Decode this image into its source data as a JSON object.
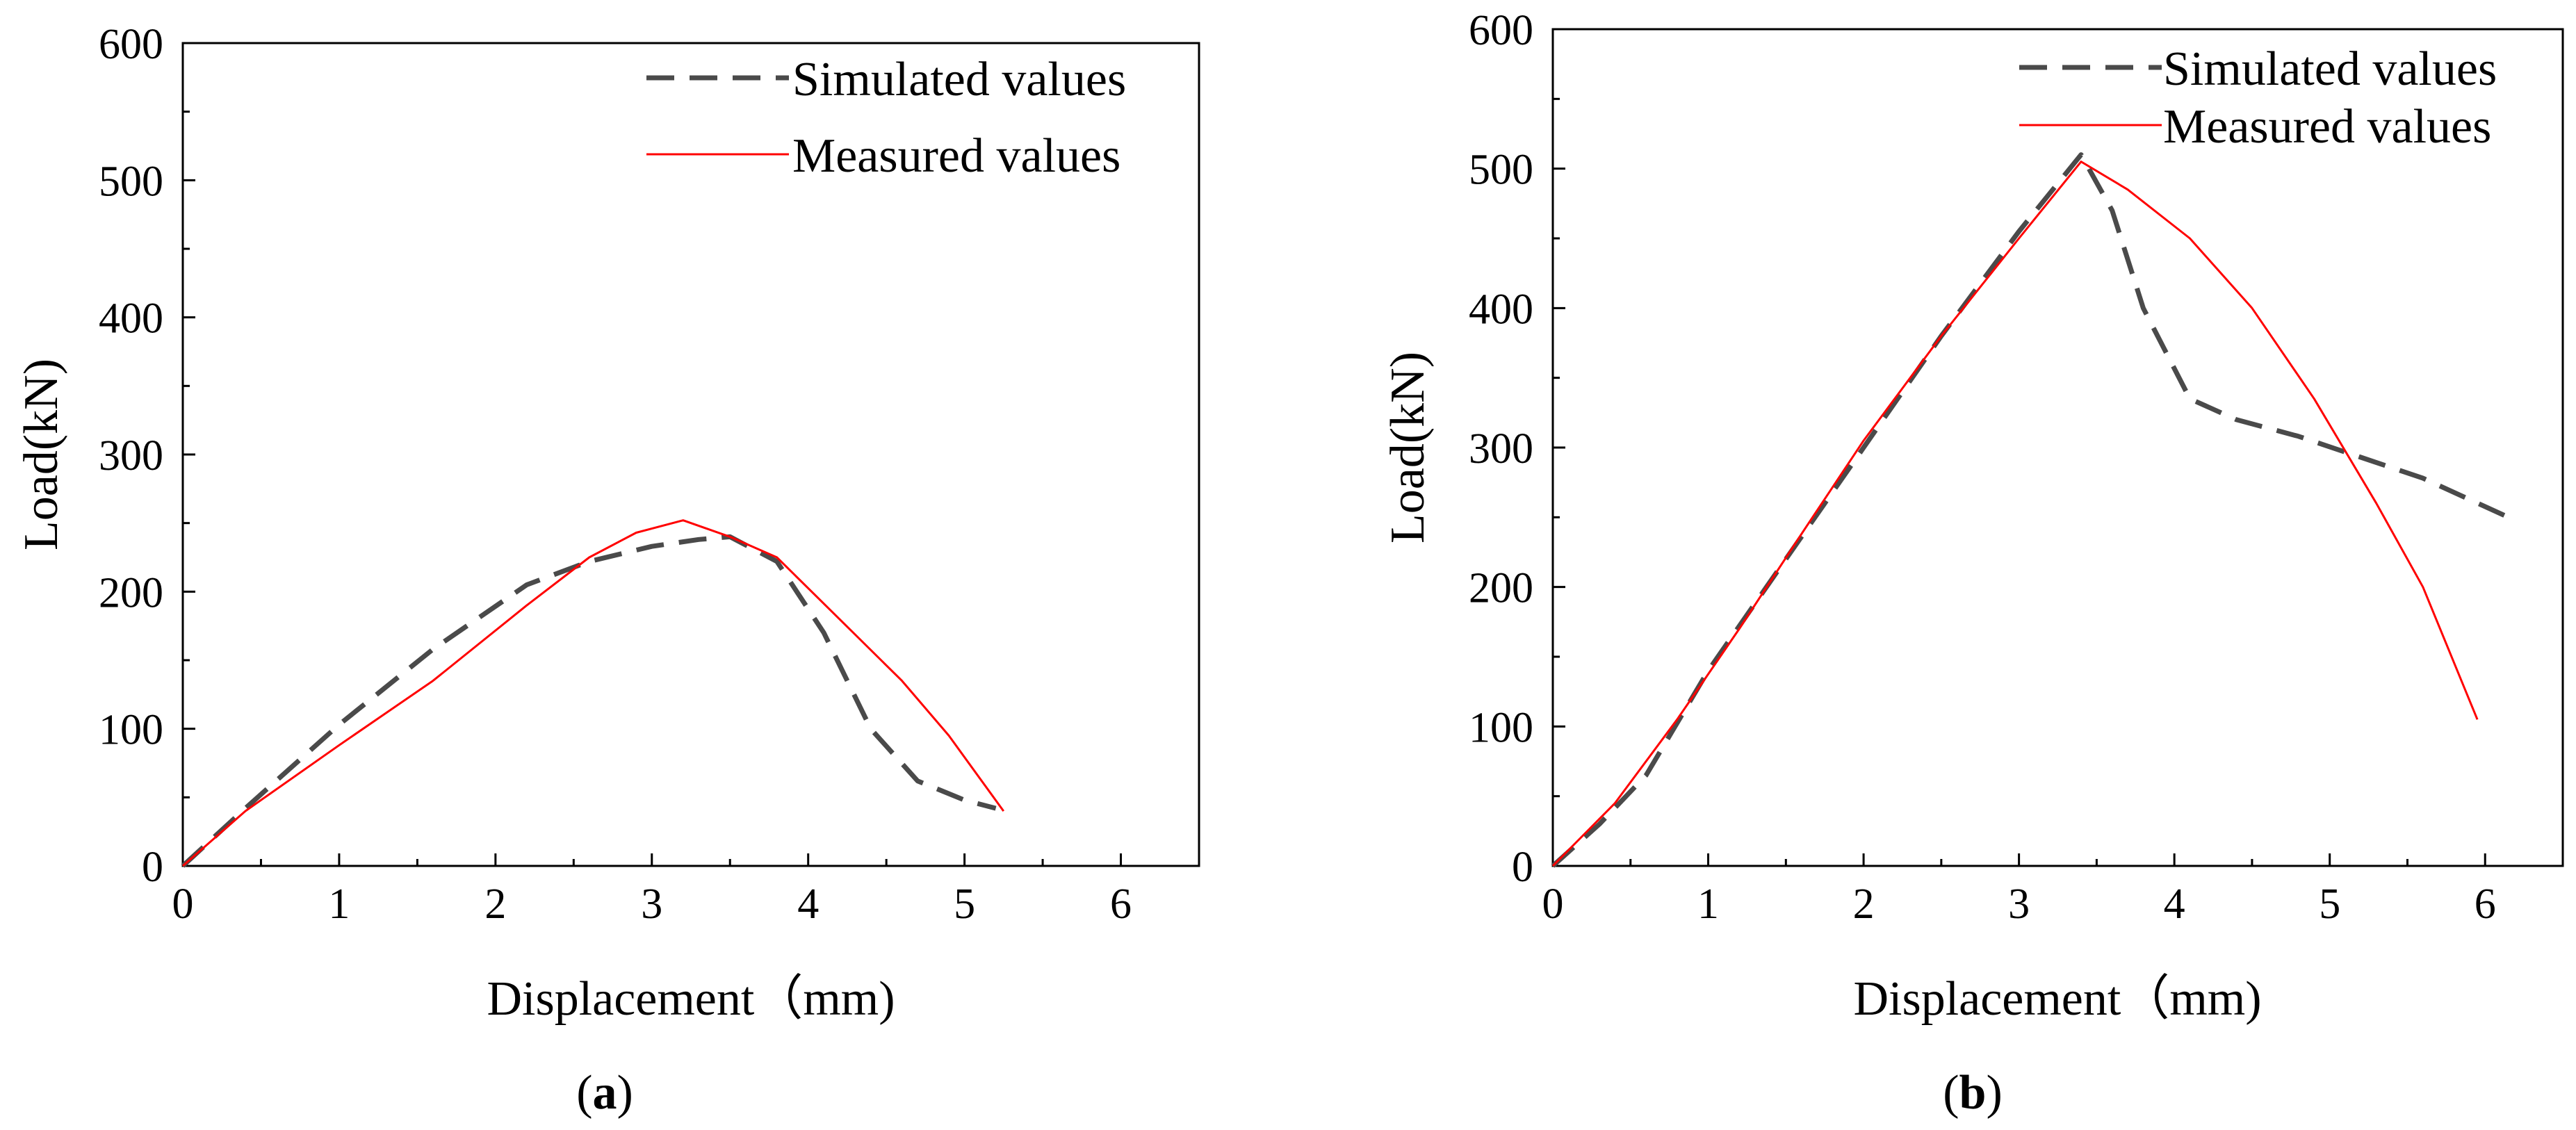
{
  "figure": {
    "panels": [
      {
        "caption_letter": "a",
        "legend": {
          "simulated": "Simulated values",
          "measured": "Measured values"
        },
        "xlabel": "Displacement（mm)",
        "ylabel": "Load(kN)"
      },
      {
        "caption_letter": "b",
        "legend": {
          "simulated": "Simulated values",
          "measured": "Measured values"
        },
        "xlabel": "Displacement（mm)",
        "ylabel": "Load(kN)"
      }
    ]
  },
  "colors": {
    "simulated": "#4a4a4a",
    "measured": "#ff0000",
    "axis": "#000000"
  },
  "chart_data": [
    {
      "type": "line",
      "xlabel": "Displacement（mm)",
      "ylabel": "Load(kN)",
      "xlim": [
        0,
        6.5
      ],
      "ylim": [
        0,
        600
      ],
      "xticks": [
        0,
        1,
        2,
        3,
        4,
        5,
        6
      ],
      "yticks": [
        0,
        100,
        200,
        300,
        400,
        500,
        600
      ],
      "legend_position": "top-right",
      "series": [
        {
          "name": "Simulated values",
          "style": "dashed",
          "x": [
            0,
            0.4,
            1.0,
            1.6,
            2.2,
            2.6,
            3.0,
            3.3,
            3.5,
            3.8,
            4.1,
            4.4,
            4.7,
            5.0,
            5.2
          ],
          "y": [
            0,
            42,
            103,
            158,
            205,
            222,
            233,
            238,
            240,
            222,
            170,
            100,
            62,
            48,
            42
          ]
        },
        {
          "name": "Measured values",
          "style": "solid",
          "x": [
            0,
            0.4,
            1.0,
            1.6,
            2.2,
            2.6,
            2.9,
            3.2,
            3.5,
            3.8,
            4.2,
            4.6,
            4.9,
            5.25
          ],
          "y": [
            0,
            40,
            88,
            135,
            190,
            225,
            243,
            252,
            240,
            225,
            180,
            135,
            95,
            40
          ]
        }
      ]
    },
    {
      "type": "line",
      "xlabel": "Displacement（mm)",
      "ylabel": "Load(kN)",
      "xlim": [
        0,
        6.5
      ],
      "ylim": [
        0,
        600
      ],
      "xticks": [
        0,
        1,
        2,
        3,
        4,
        5,
        6
      ],
      "yticks": [
        0,
        100,
        200,
        300,
        400,
        500,
        600
      ],
      "legend_position": "top-right",
      "series": [
        {
          "name": "Simulated values",
          "style": "dashed",
          "x": [
            0,
            0.3,
            0.6,
            1.0,
            1.5,
            2.0,
            2.5,
            3.0,
            3.4,
            3.6,
            3.8,
            4.1,
            4.4,
            4.8,
            5.2,
            5.6,
            6.15
          ],
          "y": [
            0,
            30,
            65,
            140,
            220,
            300,
            380,
            455,
            510,
            470,
            400,
            335,
            320,
            308,
            293,
            278,
            250
          ]
        },
        {
          "name": "Measured values",
          "style": "solid",
          "x": [
            0,
            0.4,
            0.8,
            1.2,
            1.6,
            2.0,
            2.5,
            3.0,
            3.4,
            3.7,
            4.1,
            4.5,
            4.9,
            5.3,
            5.6,
            5.95
          ],
          "y": [
            0,
            45,
            105,
            170,
            238,
            305,
            380,
            450,
            505,
            485,
            450,
            400,
            335,
            260,
            200,
            105
          ]
        }
      ]
    }
  ]
}
